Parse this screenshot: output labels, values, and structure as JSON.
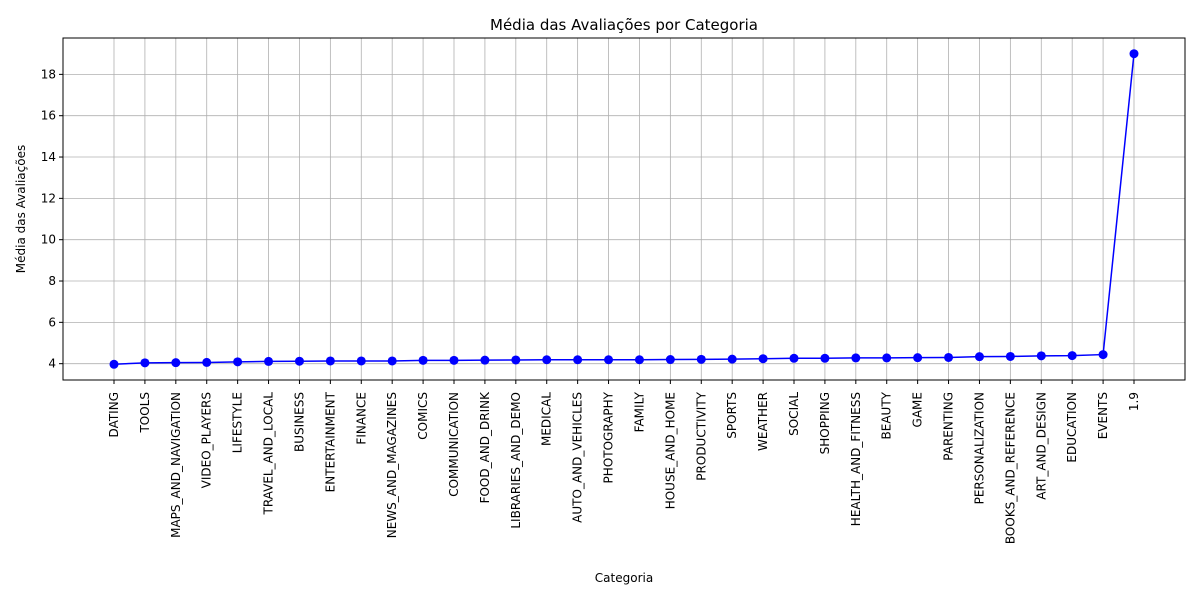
{
  "chart_data": {
    "type": "line",
    "title": "Média das Avaliações por Categoria",
    "xlabel": "Categoria",
    "ylabel": "Média das Avaliações",
    "categories": [
      "DATING",
      "TOOLS",
      "MAPS_AND_NAVIGATION",
      "VIDEO_PLAYERS",
      "LIFESTYLE",
      "TRAVEL_AND_LOCAL",
      "BUSINESS",
      "ENTERTAINMENT",
      "FINANCE",
      "NEWS_AND_MAGAZINES",
      "COMICS",
      "COMMUNICATION",
      "FOOD_AND_DRINK",
      "LIBRARIES_AND_DEMO",
      "MEDICAL",
      "AUTO_AND_VEHICLES",
      "PHOTOGRAPHY",
      "FAMILY",
      "HOUSE_AND_HOME",
      "PRODUCTIVITY",
      "SPORTS",
      "WEATHER",
      "SOCIAL",
      "SHOPPING",
      "HEALTH_AND_FITNESS",
      "BEAUTY",
      "GAME",
      "PARENTING",
      "PERSONALIZATION",
      "BOOKS_AND_REFERENCE",
      "ART_AND_DESIGN",
      "EDUCATION",
      "EVENTS",
      "1.9"
    ],
    "values": [
      3.97,
      4.04,
      4.05,
      4.06,
      4.09,
      4.11,
      4.12,
      4.13,
      4.13,
      4.13,
      4.16,
      4.16,
      4.17,
      4.18,
      4.19,
      4.19,
      4.19,
      4.19,
      4.2,
      4.21,
      4.22,
      4.24,
      4.26,
      4.26,
      4.28,
      4.28,
      4.29,
      4.3,
      4.34,
      4.35,
      4.38,
      4.39,
      4.44,
      19.0
    ],
    "ylim": [
      3.21,
      19.76
    ],
    "yticks": [
      4,
      6,
      8,
      10,
      12,
      14,
      16,
      18
    ],
    "grid": true,
    "line_color": "#0000ff",
    "marker": "circle"
  }
}
